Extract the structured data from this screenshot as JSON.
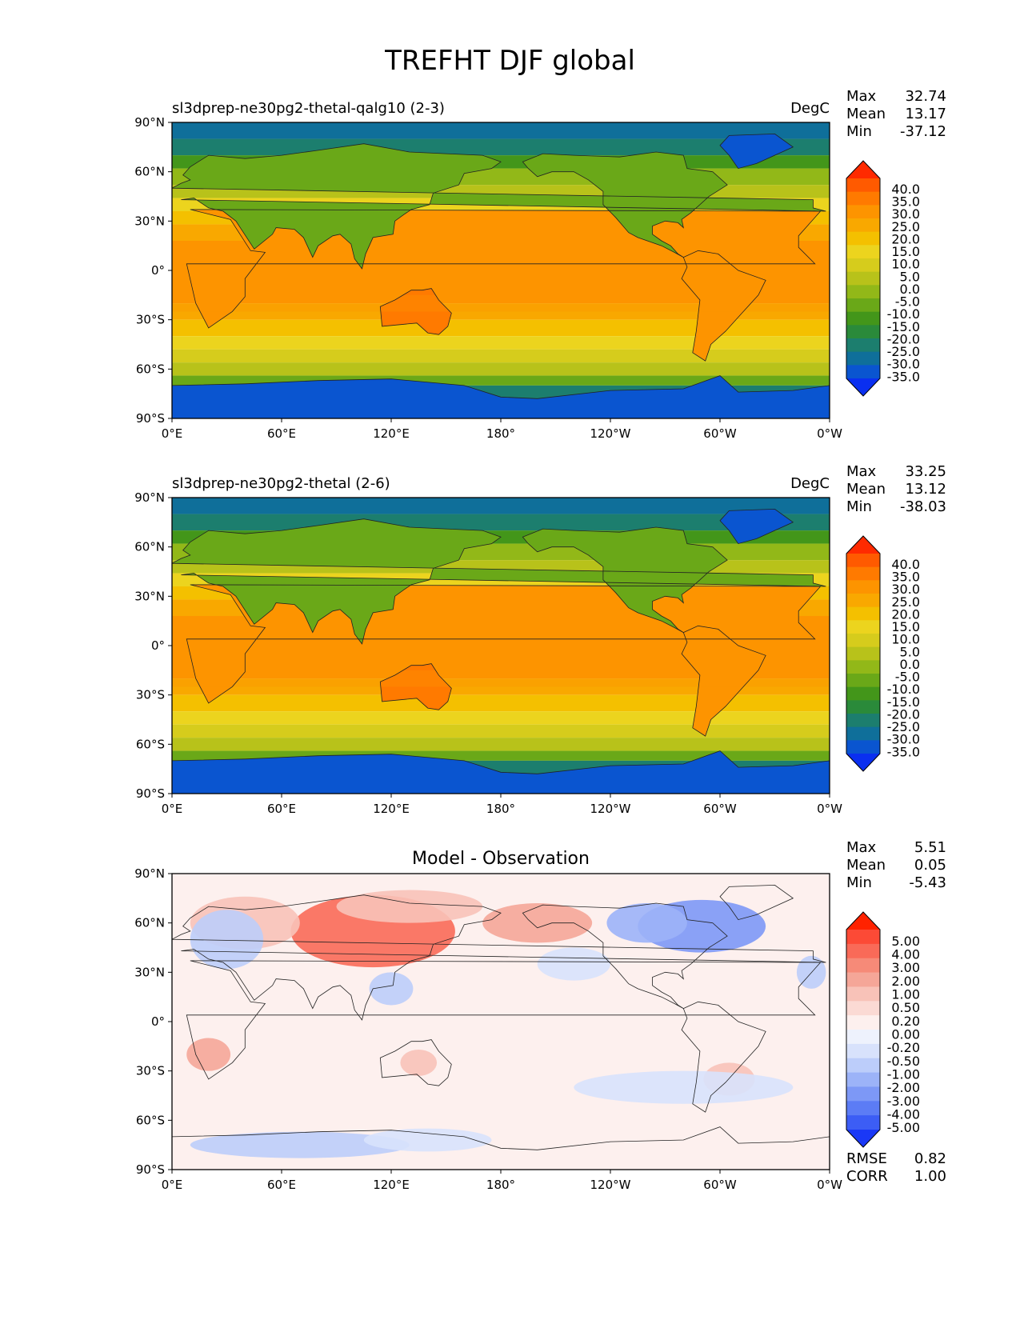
{
  "figure_title": "TREFHT DJF global",
  "axis_ticks": {
    "lat": [
      "90°N",
      "60°N",
      "30°N",
      "0°",
      "30°S",
      "60°S",
      "90°S"
    ],
    "lon": [
      "0°E",
      "60°E",
      "120°E",
      "180°",
      "120°W",
      "60°W",
      "0°W"
    ]
  },
  "panels": [
    {
      "id": "test",
      "left_title": "sl3dprep-ne30pg2-thetal-qalg10 (2-3)",
      "center_title": "",
      "units": "DegC",
      "stats": [
        {
          "label": "Max",
          "value": "32.74"
        },
        {
          "label": "Mean",
          "value": "13.17"
        },
        {
          "label": "Min",
          "value": "-37.12"
        }
      ],
      "colorbar": {
        "labels": [
          "40.0",
          "35.0",
          "30.0",
          "25.0",
          "20.0",
          "15.0",
          "10.0",
          "5.0",
          "0.0",
          "-5.0",
          "-10.0",
          "-15.0",
          "-20.0",
          "-25.0",
          "-30.0",
          "-35.0"
        ],
        "colors": [
          "#ff2a00",
          "#ff5a00",
          "#ff7a00",
          "#fd9400",
          "#f9a800",
          "#f4c000",
          "#ecd41e",
          "#d6cc1c",
          "#b8c21a",
          "#92b818",
          "#6aa818",
          "#43961a",
          "#2a8a3a",
          "#1c7e6e",
          "#0f6f9a",
          "#0a55d0",
          "#0a2ff0"
        ]
      },
      "extra_stats": []
    },
    {
      "id": "reference",
      "left_title": "sl3dprep-ne30pg2-thetal (2-6)",
      "center_title": "",
      "units": "DegC",
      "stats": [
        {
          "label": "Max",
          "value": "33.25"
        },
        {
          "label": "Mean",
          "value": "13.12"
        },
        {
          "label": "Min",
          "value": "-38.03"
        }
      ],
      "colorbar": {
        "labels": [
          "40.0",
          "35.0",
          "30.0",
          "25.0",
          "20.0",
          "15.0",
          "10.0",
          "5.0",
          "0.0",
          "-5.0",
          "-10.0",
          "-15.0",
          "-20.0",
          "-25.0",
          "-30.0",
          "-35.0"
        ],
        "colors": [
          "#ff2a00",
          "#ff5a00",
          "#ff7a00",
          "#fd9400",
          "#f9a800",
          "#f4c000",
          "#ecd41e",
          "#d6cc1c",
          "#b8c21a",
          "#92b818",
          "#6aa818",
          "#43961a",
          "#2a8a3a",
          "#1c7e6e",
          "#0f6f9a",
          "#0a55d0",
          "#0a2ff0"
        ]
      },
      "extra_stats": []
    },
    {
      "id": "difference",
      "left_title": "",
      "center_title": "Model - Observation",
      "units": "",
      "stats": [
        {
          "label": "Max",
          "value": "5.51"
        },
        {
          "label": "Mean",
          "value": "0.05"
        },
        {
          "label": "Min",
          "value": "-5.43"
        }
      ],
      "colorbar": {
        "labels": [
          "5.00",
          "4.00",
          "3.00",
          "2.00",
          "1.00",
          "0.50",
          "0.20",
          "0.00",
          "-0.20",
          "-0.50",
          "-1.00",
          "-2.00",
          "-3.00",
          "-4.00",
          "-5.00"
        ],
        "colors": [
          "#ff2200",
          "#fc4a36",
          "#f96a58",
          "#f68a78",
          "#f5a698",
          "#f8c2b8",
          "#fbdad4",
          "#fdf0ee",
          "#eef2fd",
          "#d8e2fc",
          "#bccdfa",
          "#9cb3f8",
          "#7d98f6",
          "#5c7cf5",
          "#3c5df5",
          "#1a38f6"
        ]
      },
      "extra_stats": [
        {
          "label": "RMSE",
          "value": "0.82"
        },
        {
          "label": "CORR",
          "value": "1.00"
        }
      ]
    }
  ],
  "legend_colors": {
    "ocean_tropics": "#fb8e0c",
    "ice_sheet": "#0a55d0",
    "diff_neutral": "#fdf4f2"
  },
  "chart_data": [
    {
      "type": "heatmap",
      "title": "sl3dprep-ne30pg2-thetal-qalg10 (2-3)",
      "units": "DegC",
      "variable": "TREFHT",
      "season": "DJF",
      "xlim": [
        0,
        360
      ],
      "ylim": [
        -90,
        90
      ],
      "stats": {
        "max": 32.74,
        "mean": 13.17,
        "min": -37.12
      },
      "contour_levels": [
        -35,
        -30,
        -25,
        -20,
        -15,
        -10,
        -5,
        0,
        5,
        10,
        15,
        20,
        25,
        30,
        35,
        40
      ]
    },
    {
      "type": "heatmap",
      "title": "sl3dprep-ne30pg2-thetal (2-6)",
      "units": "DegC",
      "variable": "TREFHT",
      "season": "DJF",
      "xlim": [
        0,
        360
      ],
      "ylim": [
        -90,
        90
      ],
      "stats": {
        "max": 33.25,
        "mean": 13.12,
        "min": -38.03
      },
      "contour_levels": [
        -35,
        -30,
        -25,
        -20,
        -15,
        -10,
        -5,
        0,
        5,
        10,
        15,
        20,
        25,
        30,
        35,
        40
      ]
    },
    {
      "type": "heatmap",
      "title": "Model - Observation",
      "xlim": [
        0,
        360
      ],
      "ylim": [
        -90,
        90
      ],
      "stats": {
        "max": 5.51,
        "mean": 0.05,
        "min": -5.43,
        "rmse": 0.82,
        "corr": 1.0
      },
      "contour_levels": [
        -5.0,
        -4.0,
        -3.0,
        -2.0,
        -1.0,
        -0.5,
        -0.2,
        0.0,
        0.2,
        0.5,
        1.0,
        2.0,
        3.0,
        4.0,
        5.0
      ]
    }
  ]
}
